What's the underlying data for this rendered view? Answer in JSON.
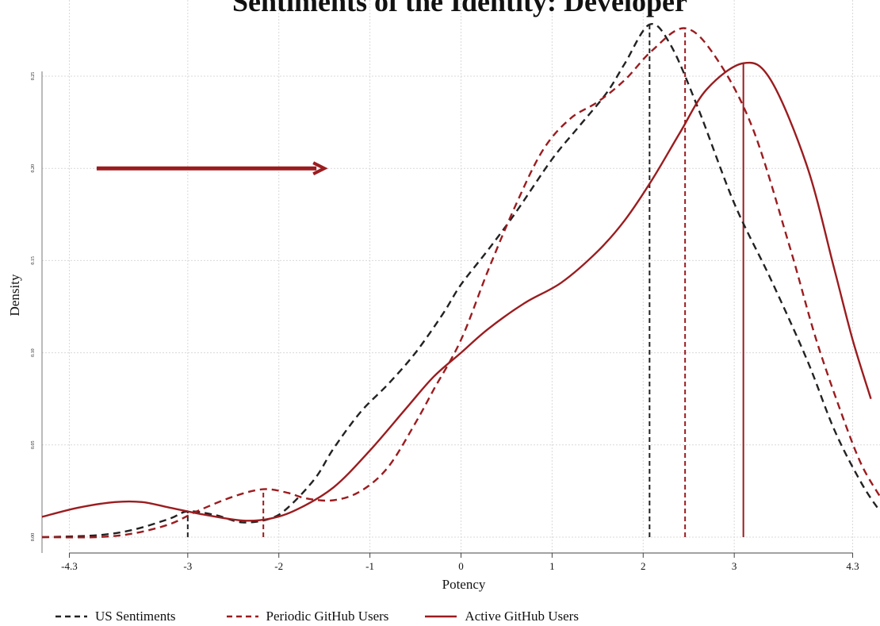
{
  "chart_data": {
    "type": "line",
    "title": "Sentiments of the Identity: Developer",
    "xlabel": "Potency",
    "ylabel": "Density",
    "xlim": [
      -4.3,
      4.3
    ],
    "ylim": [
      0.0,
      0.255
    ],
    "x_ticks": [
      -4.3,
      -3,
      -2,
      -1,
      0,
      1,
      2,
      3,
      4.3
    ],
    "x_tick_labels": [
      "-4.3",
      "-3",
      "-2",
      "-1",
      "0",
      "1",
      "2",
      "3",
      "4.3"
    ],
    "y_ticks": [
      0.0,
      0.05,
      0.1,
      0.15,
      0.2,
      0.25
    ],
    "y_tick_labels": [
      "0.00",
      "0.05",
      "0.10",
      "0.15",
      "0.20",
      "0.25"
    ],
    "grid": true,
    "legend_position": "bottom",
    "annotation": {
      "type": "arrow",
      "from_x": -4.0,
      "to_x": -1.5,
      "y": 0.2,
      "color": "#9b1c1f"
    },
    "series": [
      {
        "name": "US Sentiments",
        "style": "dashed",
        "color": "#222222",
        "vlines": [
          -3.0,
          2.07
        ],
        "points": [
          [
            -4.6,
            0.0
          ],
          [
            -4.0,
            0.001
          ],
          [
            -3.6,
            0.004
          ],
          [
            -3.2,
            0.01
          ],
          [
            -3.0,
            0.014
          ],
          [
            -2.7,
            0.012
          ],
          [
            -2.4,
            0.008
          ],
          [
            -2.1,
            0.01
          ],
          [
            -1.9,
            0.016
          ],
          [
            -1.6,
            0.032
          ],
          [
            -1.4,
            0.048
          ],
          [
            -1.1,
            0.068
          ],
          [
            -0.8,
            0.083
          ],
          [
            -0.5,
            0.1
          ],
          [
            -0.2,
            0.121
          ],
          [
            0.0,
            0.137
          ],
          [
            0.3,
            0.156
          ],
          [
            0.6,
            0.176
          ],
          [
            1.0,
            0.205
          ],
          [
            1.3,
            0.223
          ],
          [
            1.6,
            0.241
          ],
          [
            1.8,
            0.257
          ],
          [
            2.07,
            0.278
          ],
          [
            2.3,
            0.267
          ],
          [
            2.6,
            0.233
          ],
          [
            3.0,
            0.181
          ],
          [
            3.4,
            0.14
          ],
          [
            3.8,
            0.096
          ],
          [
            4.1,
            0.058
          ],
          [
            4.4,
            0.029
          ],
          [
            4.6,
            0.014
          ]
        ]
      },
      {
        "name": "Periodic GitHub Users",
        "style": "dashed",
        "color": "#9b1c1f",
        "vlines": [
          -2.17,
          2.46
        ],
        "points": [
          [
            -4.6,
            0.0
          ],
          [
            -4.0,
            0.0
          ],
          [
            -3.6,
            0.002
          ],
          [
            -3.2,
            0.007
          ],
          [
            -2.9,
            0.014
          ],
          [
            -2.5,
            0.022
          ],
          [
            -2.17,
            0.026
          ],
          [
            -1.9,
            0.024
          ],
          [
            -1.7,
            0.021
          ],
          [
            -1.4,
            0.02
          ],
          [
            -1.1,
            0.025
          ],
          [
            -0.8,
            0.038
          ],
          [
            -0.5,
            0.062
          ],
          [
            -0.3,
            0.08
          ],
          [
            0.0,
            0.107
          ],
          [
            0.3,
            0.145
          ],
          [
            0.6,
            0.18
          ],
          [
            0.9,
            0.21
          ],
          [
            1.2,
            0.227
          ],
          [
            1.5,
            0.236
          ],
          [
            1.8,
            0.248
          ],
          [
            2.1,
            0.264
          ],
          [
            2.46,
            0.276
          ],
          [
            2.8,
            0.26
          ],
          [
            3.2,
            0.222
          ],
          [
            3.6,
            0.159
          ],
          [
            3.9,
            0.107
          ],
          [
            4.2,
            0.064
          ],
          [
            4.4,
            0.039
          ],
          [
            4.6,
            0.022
          ]
        ]
      },
      {
        "name": "Active GitHub Users",
        "style": "solid",
        "color": "#9b1c1f",
        "vlines": [
          3.1
        ],
        "points": [
          [
            -4.6,
            0.011
          ],
          [
            -4.2,
            0.016
          ],
          [
            -3.8,
            0.019
          ],
          [
            -3.5,
            0.019
          ],
          [
            -3.2,
            0.016
          ],
          [
            -2.8,
            0.012
          ],
          [
            -2.4,
            0.009
          ],
          [
            -2.1,
            0.01
          ],
          [
            -1.8,
            0.015
          ],
          [
            -1.4,
            0.027
          ],
          [
            -1.0,
            0.047
          ],
          [
            -0.6,
            0.07
          ],
          [
            -0.3,
            0.087
          ],
          [
            0.0,
            0.1
          ],
          [
            0.3,
            0.113
          ],
          [
            0.7,
            0.127
          ],
          [
            1.1,
            0.138
          ],
          [
            1.5,
            0.155
          ],
          [
            1.8,
            0.172
          ],
          [
            2.1,
            0.194
          ],
          [
            2.4,
            0.219
          ],
          [
            2.7,
            0.243
          ],
          [
            3.1,
            0.257
          ],
          [
            3.4,
            0.248
          ],
          [
            3.8,
            0.201
          ],
          [
            4.1,
            0.145
          ],
          [
            4.3,
            0.107
          ],
          [
            4.5,
            0.075
          ]
        ]
      }
    ]
  }
}
